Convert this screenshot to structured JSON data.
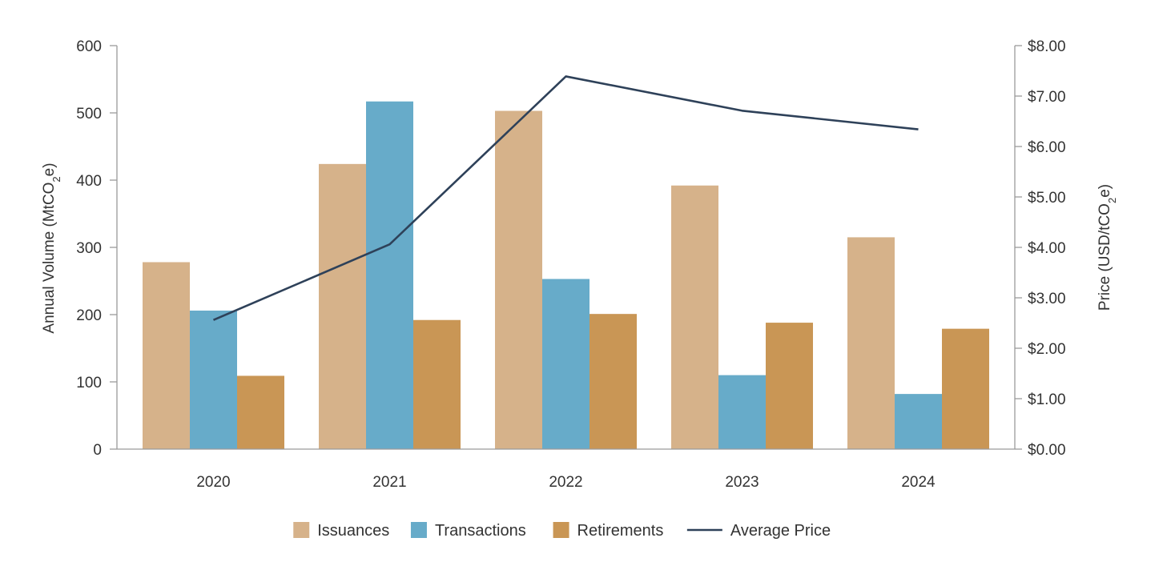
{
  "chart_data": {
    "type": "bar",
    "categories": [
      "2020",
      "2021",
      "2022",
      "2023",
      "2024"
    ],
    "series": [
      {
        "name": "Issuances",
        "kind": "bar",
        "axis": "left",
        "color": "#D6B28A",
        "values": [
          278,
          424,
          503,
          392,
          315
        ]
      },
      {
        "name": "Transactions",
        "kind": "bar",
        "axis": "left",
        "color": "#67ABC9",
        "values": [
          206,
          517,
          253,
          110,
          82
        ]
      },
      {
        "name": "Retirements",
        "kind": "bar",
        "axis": "left",
        "color": "#C99655",
        "values": [
          109,
          192,
          201,
          188,
          179
        ]
      },
      {
        "name": "Average Price",
        "kind": "line",
        "axis": "right",
        "color": "#2E4159",
        "values": [
          2.56,
          4.06,
          7.39,
          6.71,
          6.34
        ]
      }
    ],
    "y_left": {
      "label_parts": [
        "Annual Volume (MtCO",
        "2",
        "e)"
      ],
      "ylim": [
        0,
        600
      ],
      "ticks": [
        0,
        100,
        200,
        300,
        400,
        500,
        600
      ],
      "tick_labels": [
        "0",
        "100",
        "200",
        "300",
        "400",
        "500",
        "600"
      ]
    },
    "y_right": {
      "label_parts": [
        "Price (USD/tCO",
        "2",
        "e)"
      ],
      "ylim": [
        0,
        8
      ],
      "ticks": [
        0,
        1,
        2,
        3,
        4,
        5,
        6,
        7,
        8
      ],
      "tick_labels": [
        "$0.00",
        "$1.00",
        "$2.00",
        "$3.00",
        "$4.00",
        "$5.00",
        "$6.00",
        "$7.00",
        "$8.00"
      ]
    },
    "grid": false,
    "legend_position": "bottom-center",
    "axis_color": "#9A9A9A"
  }
}
